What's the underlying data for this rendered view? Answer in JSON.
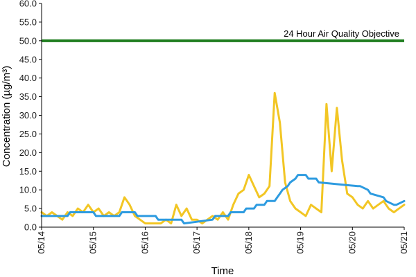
{
  "chart_data": {
    "type": "line",
    "xlabel": "Time",
    "ylabel": "Concentration (µg/m³)",
    "ylim": [
      0,
      60
    ],
    "y_ticks": [
      "0.0",
      "5.0",
      "10.0",
      "15.0",
      "20.0",
      "25.0",
      "30.0",
      "35.0",
      "40.0",
      "45.0",
      "50.0",
      "55.0",
      "60.0"
    ],
    "x_ticks": [
      "05/14",
      "05/15",
      "05/16",
      "05/17",
      "05/18",
      "05/19",
      "05/20",
      "05/21"
    ],
    "grid": false,
    "annotations": [
      {
        "text": "24 Hour Air Quality Objective"
      }
    ],
    "objective": {
      "value": 50,
      "color": "#1e7d1e"
    },
    "series": [
      {
        "color": "#f2c624",
        "x": [
          0,
          0.1,
          0.2,
          0.3,
          0.4,
          0.5,
          0.6,
          0.7,
          0.8,
          0.9,
          1.0,
          1.1,
          1.2,
          1.3,
          1.4,
          1.5,
          1.6,
          1.7,
          1.8,
          1.9,
          2.0,
          2.1,
          2.2,
          2.3,
          2.4,
          2.5,
          2.6,
          2.7,
          2.8,
          2.9,
          3.0,
          3.1,
          3.2,
          3.3,
          3.4,
          3.5,
          3.6,
          3.7,
          3.8,
          3.9,
          4.0,
          4.1,
          4.2,
          4.3,
          4.4,
          4.5,
          4.6,
          4.7,
          4.8,
          4.9,
          5.0,
          5.1,
          5.2,
          5.3,
          5.4,
          5.5,
          5.6,
          5.7,
          5.8,
          5.9,
          6.0,
          6.1,
          6.2,
          6.3,
          6.4,
          6.5,
          6.6,
          6.7,
          6.8,
          6.9,
          7.0
        ],
        "y": [
          4,
          3,
          4,
          3,
          2,
          4,
          3,
          5,
          4,
          6,
          4,
          5,
          3,
          4,
          3,
          4,
          8,
          6,
          3,
          2,
          1,
          1,
          1,
          1,
          2,
          1,
          6,
          3,
          5,
          2,
          2,
          1,
          2,
          3,
          2,
          4,
          2,
          6,
          9,
          10,
          14,
          11,
          8,
          9,
          11,
          36,
          28,
          12,
          7,
          5,
          4,
          3,
          6,
          5,
          4,
          33,
          15,
          32,
          18,
          9,
          8,
          6,
          5,
          7,
          5,
          6,
          7,
          5,
          4,
          5,
          6
        ]
      },
      {
        "color": "#2d9be0",
        "x": [
          0,
          0.5,
          0.55,
          1.0,
          1.05,
          1.5,
          1.55,
          1.8,
          1.85,
          2.2,
          2.25,
          2.7,
          2.75,
          3.3,
          3.35,
          3.6,
          3.65,
          3.9,
          3.95,
          4.1,
          4.15,
          4.3,
          4.35,
          4.5,
          4.55,
          4.6,
          4.65,
          4.75,
          4.8,
          4.9,
          4.95,
          5.1,
          5.15,
          5.3,
          5.35,
          6.1,
          6.15,
          6.3,
          6.35,
          6.6,
          6.65,
          6.8,
          6.85,
          7.0
        ],
        "y": [
          3,
          3,
          4,
          4,
          3,
          3,
          4,
          4,
          3,
          3,
          2,
          2,
          1,
          2,
          3,
          3,
          4,
          4,
          5,
          5,
          6,
          6,
          7,
          7,
          8,
          9,
          10,
          11,
          12,
          13,
          14,
          14,
          13,
          13,
          12,
          11,
          11,
          10,
          9,
          8,
          7,
          6,
          6,
          7
        ]
      }
    ]
  }
}
